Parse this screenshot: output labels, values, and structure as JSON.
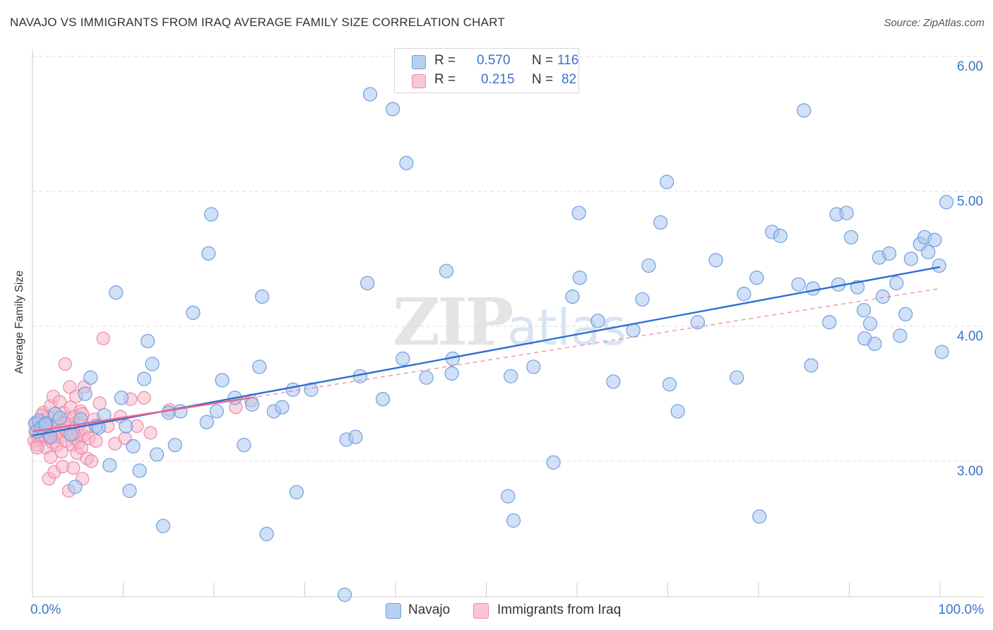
{
  "title": "NAVAJO VS IMMIGRANTS FROM IRAQ AVERAGE FAMILY SIZE CORRELATION CHART",
  "source": "Source: ZipAtlas.com",
  "watermark": {
    "zip": "ZIP",
    "atlas": "atlas"
  },
  "legend": {
    "rows": [
      {
        "r_label": "R =",
        "r_value": "0.570",
        "n_label": "N =",
        "n_value": "116"
      },
      {
        "r_label": "R =",
        "r_value": "0.215",
        "n_label": "N =",
        "n_value": "82"
      }
    ]
  },
  "colors": {
    "navajo_fill": "#a9c7ee",
    "navajo_stroke": "#6f9fdc",
    "navajo_line": "#2f6fd0",
    "iraq_fill": "#f6b7cb",
    "iraq_stroke": "#ec89a8",
    "iraq_line": "#e8648e",
    "value_text": "#3a74c8",
    "grid": "#dddddd"
  },
  "chart_data": {
    "type": "scatter",
    "title": "NAVAJO VS IMMIGRANTS FROM IRAQ AVERAGE FAMILY SIZE CORRELATION CHART",
    "xlabel": "",
    "ylabel": "Average Family Size",
    "xlim": [
      0,
      100
    ],
    "ylim": [
      2.05,
      6.1
    ],
    "x_tick_labels": [
      "0.0%",
      "100.0%"
    ],
    "y_ticks": [
      3.0,
      4.0,
      5.0,
      6.0
    ],
    "y_tick_labels": [
      "3.00",
      "4.00",
      "5.00",
      "6.00"
    ],
    "grid": true,
    "legend_position": "top-center and bottom",
    "series": [
      {
        "name": "Navajo",
        "r": 0.57,
        "n": 116,
        "trend": {
          "x": [
            0,
            100
          ],
          "y": [
            3.19,
            4.44
          ]
        },
        "points": [
          [
            0.3,
            3.28
          ],
          [
            0.5,
            3.22
          ],
          [
            0.7,
            3.3
          ],
          [
            1.0,
            3.25
          ],
          [
            1.5,
            3.28
          ],
          [
            2.0,
            3.18
          ],
          [
            2.5,
            3.35
          ],
          [
            3.0,
            3.32
          ],
          [
            4.7,
            2.81
          ],
          [
            5.3,
            3.31
          ],
          [
            5.8,
            3.5
          ],
          [
            6.4,
            3.62
          ],
          [
            7.0,
            3.26
          ],
          [
            7.3,
            3.25
          ],
          [
            7.9,
            3.34
          ],
          [
            8.5,
            2.97
          ],
          [
            9.2,
            4.25
          ],
          [
            9.8,
            3.47
          ],
          [
            10.3,
            3.26
          ],
          [
            10.7,
            2.78
          ],
          [
            11.1,
            3.11
          ],
          [
            11.8,
            2.93
          ],
          [
            12.3,
            3.61
          ],
          [
            12.7,
            3.89
          ],
          [
            13.2,
            3.72
          ],
          [
            14.4,
            2.52
          ],
          [
            15.0,
            3.36
          ],
          [
            15.7,
            3.12
          ],
          [
            16.3,
            3.37
          ],
          [
            17.7,
            4.1
          ],
          [
            19.2,
            3.29
          ],
          [
            19.4,
            4.54
          ],
          [
            19.7,
            4.83
          ],
          [
            20.3,
            3.37
          ],
          [
            20.9,
            3.6
          ],
          [
            22.3,
            3.47
          ],
          [
            23.3,
            3.12
          ],
          [
            24.2,
            3.42
          ],
          [
            25.0,
            3.7
          ],
          [
            25.3,
            4.22
          ],
          [
            25.8,
            2.46
          ],
          [
            26.6,
            3.37
          ],
          [
            27.5,
            3.4
          ],
          [
            28.7,
            3.53
          ],
          [
            29.1,
            2.77
          ],
          [
            30.7,
            3.53
          ],
          [
            34.4,
            2.01
          ],
          [
            34.6,
            3.16
          ],
          [
            35.6,
            3.18
          ],
          [
            36.1,
            3.63
          ],
          [
            36.9,
            4.32
          ],
          [
            37.2,
            5.72
          ],
          [
            38.6,
            3.46
          ],
          [
            39.7,
            5.61
          ],
          [
            40.8,
            3.76
          ],
          [
            41.2,
            5.21
          ],
          [
            43.4,
            3.62
          ],
          [
            45.6,
            4.41
          ],
          [
            46.2,
            3.65
          ],
          [
            46.3,
            3.76
          ],
          [
            52.4,
            2.74
          ],
          [
            52.7,
            3.63
          ],
          [
            53.0,
            2.56
          ],
          [
            55.2,
            3.7
          ],
          [
            57.4,
            2.99
          ],
          [
            59.5,
            4.22
          ],
          [
            60.2,
            4.84
          ],
          [
            60.3,
            4.36
          ],
          [
            62.3,
            4.04
          ],
          [
            64.0,
            3.59
          ],
          [
            66.2,
            3.97
          ],
          [
            67.2,
            4.2
          ],
          [
            67.9,
            4.45
          ],
          [
            69.2,
            4.77
          ],
          [
            69.9,
            5.07
          ],
          [
            70.2,
            3.57
          ],
          [
            71.1,
            3.37
          ],
          [
            73.3,
            4.03
          ],
          [
            75.3,
            4.49
          ],
          [
            77.6,
            3.62
          ],
          [
            78.4,
            4.24
          ],
          [
            79.8,
            4.36
          ],
          [
            80.1,
            2.59
          ],
          [
            81.5,
            4.7
          ],
          [
            82.4,
            4.67
          ],
          [
            84.4,
            4.31
          ],
          [
            85.0,
            5.6
          ],
          [
            85.8,
            3.71
          ],
          [
            86.0,
            4.28
          ],
          [
            87.8,
            4.03
          ],
          [
            88.6,
            4.83
          ],
          [
            88.8,
            4.31
          ],
          [
            89.7,
            4.84
          ],
          [
            90.2,
            4.66
          ],
          [
            90.9,
            4.29
          ],
          [
            91.6,
            4.12
          ],
          [
            91.7,
            3.91
          ],
          [
            92.3,
            4.02
          ],
          [
            92.8,
            3.87
          ],
          [
            93.3,
            4.51
          ],
          [
            93.7,
            4.22
          ],
          [
            94.4,
            4.54
          ],
          [
            95.2,
            4.32
          ],
          [
            95.6,
            3.93
          ],
          [
            96.2,
            4.09
          ],
          [
            96.8,
            4.5
          ],
          [
            97.8,
            4.61
          ],
          [
            98.3,
            4.66
          ],
          [
            98.7,
            4.55
          ],
          [
            99.4,
            4.64
          ],
          [
            99.9,
            4.45
          ],
          [
            100.2,
            3.81
          ],
          [
            100.7,
            4.92
          ],
          [
            1.4,
            3.27
          ],
          [
            4.2,
            3.2
          ],
          [
            13.7,
            3.05
          ]
        ]
      },
      {
        "name": "Immigrants from Iraq",
        "r": 0.215,
        "n": 82,
        "trend": {
          "x": [
            0,
            24
          ],
          "y": [
            3.22,
            3.47
          ]
        },
        "trend_extended": {
          "x": [
            24,
            100
          ],
          "y": [
            3.47,
            4.28
          ]
        },
        "points": [
          [
            0.2,
            3.15
          ],
          [
            0.3,
            3.22
          ],
          [
            0.4,
            3.28
          ],
          [
            0.5,
            3.12
          ],
          [
            0.6,
            3.18
          ],
          [
            0.7,
            3.25
          ],
          [
            0.8,
            3.2
          ],
          [
            0.9,
            3.3
          ],
          [
            1.0,
            3.16
          ],
          [
            1.1,
            3.23
          ],
          [
            1.2,
            3.36
          ],
          [
            1.3,
            3.19
          ],
          [
            1.4,
            3.27
          ],
          [
            1.5,
            3.1
          ],
          [
            1.6,
            3.21
          ],
          [
            1.7,
            3.33
          ],
          [
            1.8,
            2.87
          ],
          [
            1.9,
            3.17
          ],
          [
            2.0,
            3.41
          ],
          [
            2.1,
            3.24
          ],
          [
            2.2,
            3.14
          ],
          [
            2.3,
            3.48
          ],
          [
            2.4,
            2.92
          ],
          [
            2.5,
            3.26
          ],
          [
            2.6,
            3.2
          ],
          [
            2.7,
            3.12
          ],
          [
            2.8,
            3.3
          ],
          [
            2.9,
            3.22
          ],
          [
            3.0,
            3.44
          ],
          [
            3.1,
            3.18
          ],
          [
            3.2,
            3.07
          ],
          [
            3.3,
            2.96
          ],
          [
            3.4,
            3.36
          ],
          [
            3.5,
            3.24
          ],
          [
            3.6,
            3.72
          ],
          [
            3.7,
            3.15
          ],
          [
            3.8,
            3.31
          ],
          [
            3.9,
            3.21
          ],
          [
            4.0,
            2.78
          ],
          [
            4.1,
            3.55
          ],
          [
            4.2,
            3.4
          ],
          [
            4.3,
            3.27
          ],
          [
            4.4,
            3.12
          ],
          [
            4.5,
            2.95
          ],
          [
            4.6,
            3.33
          ],
          [
            4.7,
            3.17
          ],
          [
            4.8,
            3.48
          ],
          [
            4.9,
            3.06
          ],
          [
            5.0,
            3.22
          ],
          [
            5.1,
            3.14
          ],
          [
            5.2,
            3.28
          ],
          [
            5.3,
            3.37
          ],
          [
            5.4,
            3.1
          ],
          [
            5.5,
            2.87
          ],
          [
            5.6,
            3.19
          ],
          [
            5.7,
            3.55
          ],
          [
            5.8,
            3.24
          ],
          [
            6.0,
            3.02
          ],
          [
            6.2,
            3.17
          ],
          [
            6.5,
            3.0
          ],
          [
            7.0,
            3.15
          ],
          [
            7.4,
            3.43
          ],
          [
            7.8,
            3.91
          ],
          [
            8.3,
            3.26
          ],
          [
            9.1,
            3.13
          ],
          [
            9.7,
            3.33
          ],
          [
            10.2,
            3.17
          ],
          [
            10.8,
            3.46
          ],
          [
            11.5,
            3.26
          ],
          [
            12.3,
            3.47
          ],
          [
            13.0,
            3.21
          ],
          [
            15.1,
            3.38
          ],
          [
            22.4,
            3.4
          ],
          [
            24.1,
            3.45
          ],
          [
            0.5,
            3.1
          ],
          [
            1.0,
            3.34
          ],
          [
            1.5,
            3.24
          ],
          [
            2.0,
            3.03
          ],
          [
            3.5,
            3.28
          ],
          [
            4.5,
            3.2
          ],
          [
            5.5,
            3.35
          ],
          [
            6.8,
            3.31
          ]
        ]
      }
    ]
  }
}
